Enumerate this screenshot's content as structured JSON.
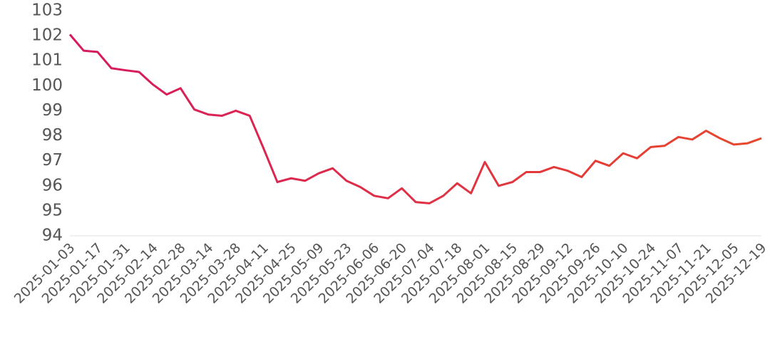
{
  "chart_data": {
    "type": "line",
    "categories": [
      "2025-01-03",
      null,
      "2025-01-17",
      null,
      "2025-01-31",
      null,
      "2025-02-14",
      null,
      "2025-02-28",
      null,
      "2025-03-14",
      null,
      "2025-03-28",
      null,
      "2025-04-11",
      null,
      "2025-04-25",
      null,
      "2025-05-09",
      null,
      "2025-05-23",
      null,
      "2025-06-06",
      null,
      "2025-06-20",
      null,
      "2025-07-04",
      null,
      "2025-07-18",
      null,
      "2025-08-01",
      null,
      "2025-08-15",
      null,
      "2025-08-29",
      null,
      "2025-09-12",
      null,
      "2025-09-26",
      null,
      "2025-10-10",
      null,
      "2025-10-24",
      null,
      "2025-11-07",
      null,
      "2025-11-21",
      null,
      "2025-12-05",
      null,
      "2025-12-19"
    ],
    "series": [
      {
        "colors": [
          "#d6195f",
          "#e8482c"
        ],
        "values": [
          102.05,
          101.4,
          101.35,
          100.7,
          100.62,
          100.55,
          100.05,
          99.65,
          99.9,
          99.05,
          98.85,
          98.8,
          99.0,
          98.8,
          97.5,
          96.15,
          96.3,
          96.2,
          96.5,
          96.7,
          96.2,
          95.95,
          95.6,
          95.5,
          95.9,
          95.35,
          95.3,
          95.6,
          96.1,
          95.7,
          96.95,
          96.0,
          96.15,
          96.55,
          96.55,
          96.75,
          96.6,
          96.35,
          97.0,
          96.8,
          97.3,
          97.1,
          97.55,
          97.6,
          97.95,
          97.85,
          98.2,
          97.9,
          97.65,
          97.7,
          97.9
        ]
      }
    ],
    "ylim": [
      94,
      103
    ],
    "yticks": [
      94,
      95,
      96,
      97,
      98,
      99,
      100,
      101,
      102,
      103
    ]
  }
}
